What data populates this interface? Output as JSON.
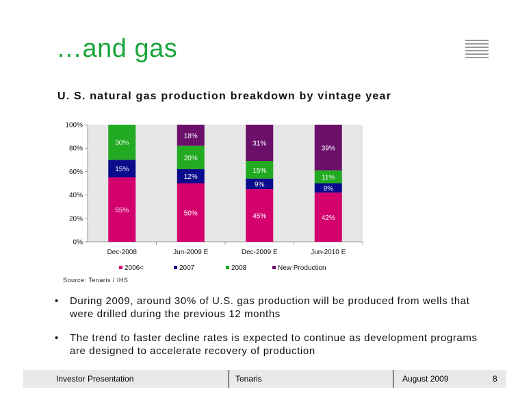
{
  "title": "…and gas",
  "subtitle": "U. S. natural gas production breakdown by vintage year",
  "source": "Source: Tenaris / IHS",
  "bullets": [
    "During 2009, around 30% of U.S. gas production will be produced from wells that were drilled during the previous 12 months",
    "The trend to faster decline rates is expected to continue as development programs are designed to accelerate recovery of production"
  ],
  "bullet_glyph": "•",
  "footer": {
    "left": "Investor Presentation",
    "center": "Tenaris",
    "date": "August 2009",
    "page": "8"
  },
  "chart_data": {
    "type": "bar",
    "stacked": true,
    "categories": [
      "Dec-2008",
      "Jun-2009 E",
      "Dec-2009 E",
      "Jun-2010 E"
    ],
    "series": [
      {
        "name": "2006<",
        "color": "#d4006e",
        "values": [
          55,
          50,
          45,
          42
        ]
      },
      {
        "name": "2007",
        "color": "#0a0a8c",
        "values": [
          15,
          12,
          9,
          8
        ]
      },
      {
        "name": "2008",
        "color": "#22aa22",
        "values": [
          30,
          20,
          15,
          11
        ]
      },
      {
        "name": "New Production",
        "color": "#6b0f6b",
        "values": [
          0,
          18,
          31,
          39
        ]
      }
    ],
    "data_labels": [
      [
        "55%",
        "15%",
        "30%",
        ""
      ],
      [
        "50%",
        "12%",
        "20%",
        "18%"
      ],
      [
        "45%",
        "9%",
        "15%",
        "31%"
      ],
      [
        "42%",
        "8%",
        "11%",
        "39%"
      ]
    ],
    "y_ticks": [
      "0%",
      "20%",
      "40%",
      "60%",
      "80%",
      "100%"
    ],
    "ylim": [
      0,
      100
    ],
    "plot_background": "#e6e6e6",
    "legend_position": "bottom"
  }
}
